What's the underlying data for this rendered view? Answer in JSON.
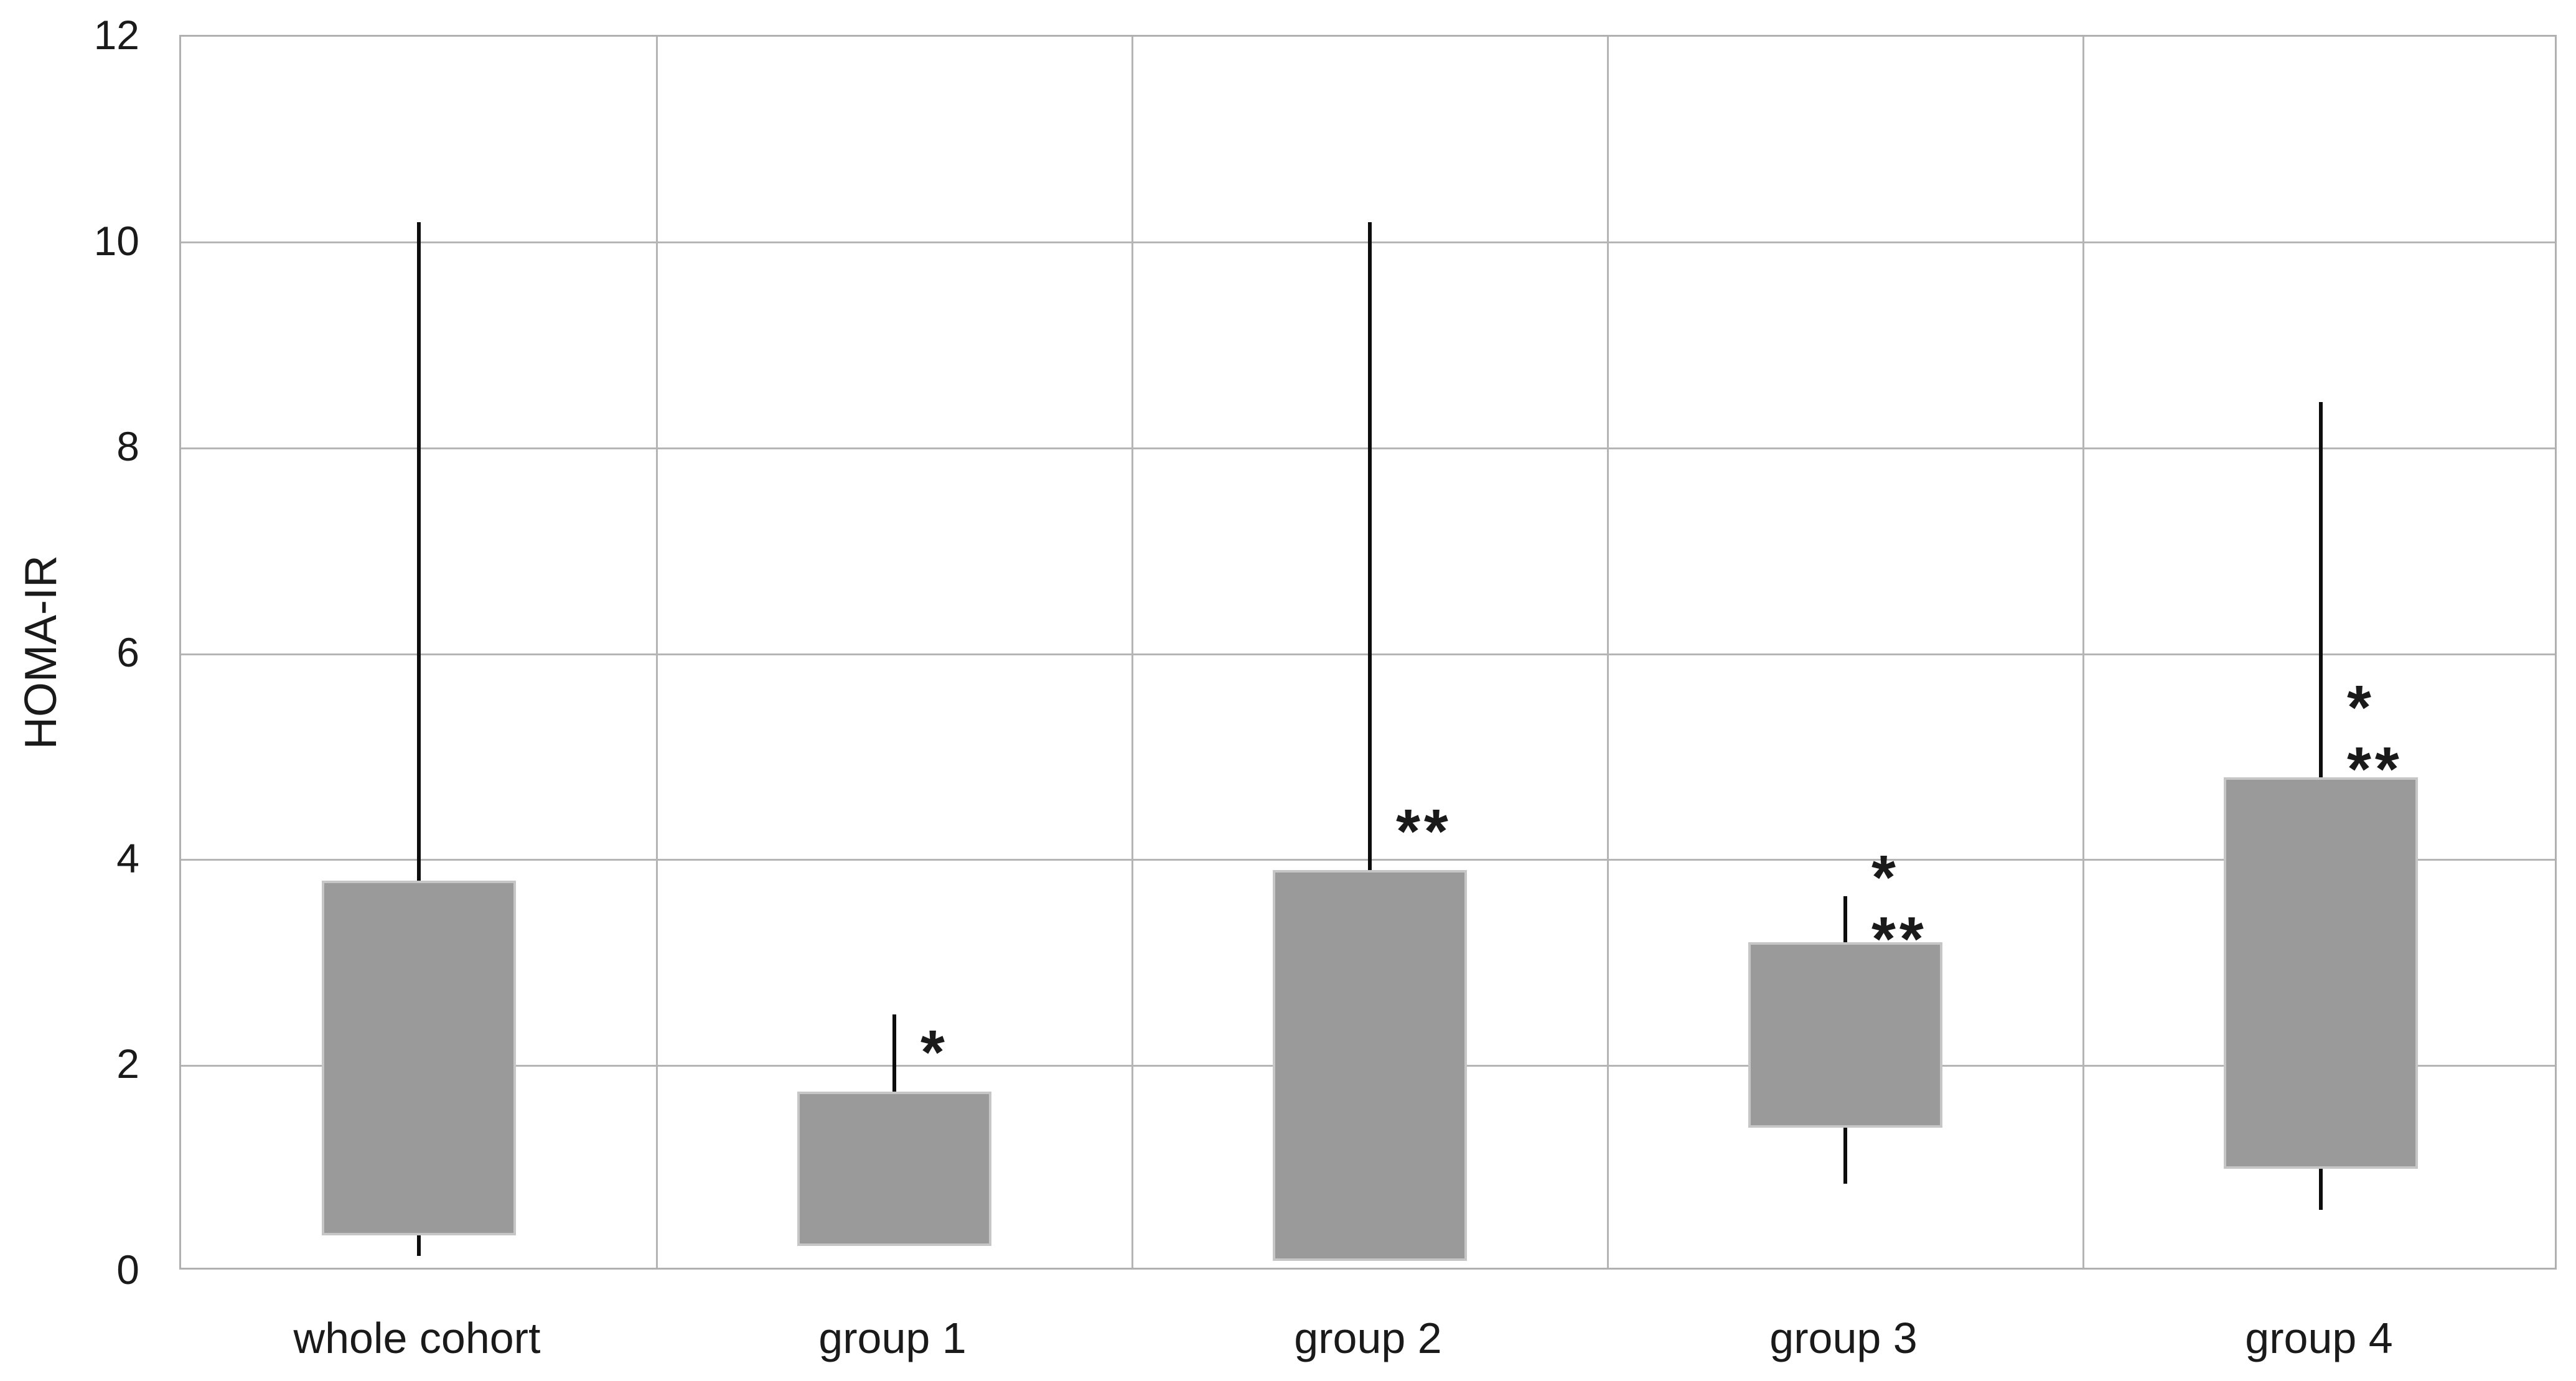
{
  "chart_data": {
    "type": "box",
    "title": "",
    "xlabel": "",
    "ylabel": "HOMA-IR",
    "ylim": [
      0,
      12
    ],
    "yticks": [
      0,
      2,
      4,
      6,
      8,
      10,
      12
    ],
    "grid": "horizontal gridlines every 2 units, vertical separators between categories, full plot border",
    "legend": "none",
    "categories": [
      "whole cohort",
      "group 1",
      "group 2",
      "group 3",
      "group 4"
    ],
    "series": [
      {
        "name": "whole cohort",
        "box_bottom": 0.35,
        "box_top": 3.8,
        "whisker_low": 0.15,
        "whisker_high": 10.2,
        "annotations": []
      },
      {
        "name": "group 1",
        "box_bottom": 0.25,
        "box_top": 1.75,
        "whisker_low": null,
        "whisker_high": 2.5,
        "annotations": [
          {
            "text": "*",
            "value": 2.25
          }
        ]
      },
      {
        "name": "group 2",
        "box_bottom": 0.1,
        "box_top": 3.9,
        "whisker_low": null,
        "whisker_high": 10.2,
        "annotations": [
          {
            "text": "**",
            "value": 4.4
          }
        ]
      },
      {
        "name": "group 3",
        "box_bottom": 1.4,
        "box_top": 3.2,
        "whisker_low": 0.85,
        "whisker_high": 3.65,
        "annotations": [
          {
            "text": "*",
            "value": 3.95
          },
          {
            "text": "**",
            "value": 3.35
          }
        ]
      },
      {
        "name": "group 4",
        "box_bottom": 1.0,
        "box_top": 4.8,
        "whisker_low": 0.6,
        "whisker_high": 8.45,
        "annotations": [
          {
            "text": "*",
            "value": 5.6
          },
          {
            "text": "**",
            "value": 5.0
          }
        ]
      }
    ],
    "colors": {
      "box_fill": "#9a9a9a",
      "box_border": "#c6c6c6",
      "whisker": "#0d0d0d",
      "gridline": "#b5b5b5",
      "plot_border": "#b0b0b0",
      "text": "#1a1a1a",
      "background": "#ffffff"
    }
  }
}
